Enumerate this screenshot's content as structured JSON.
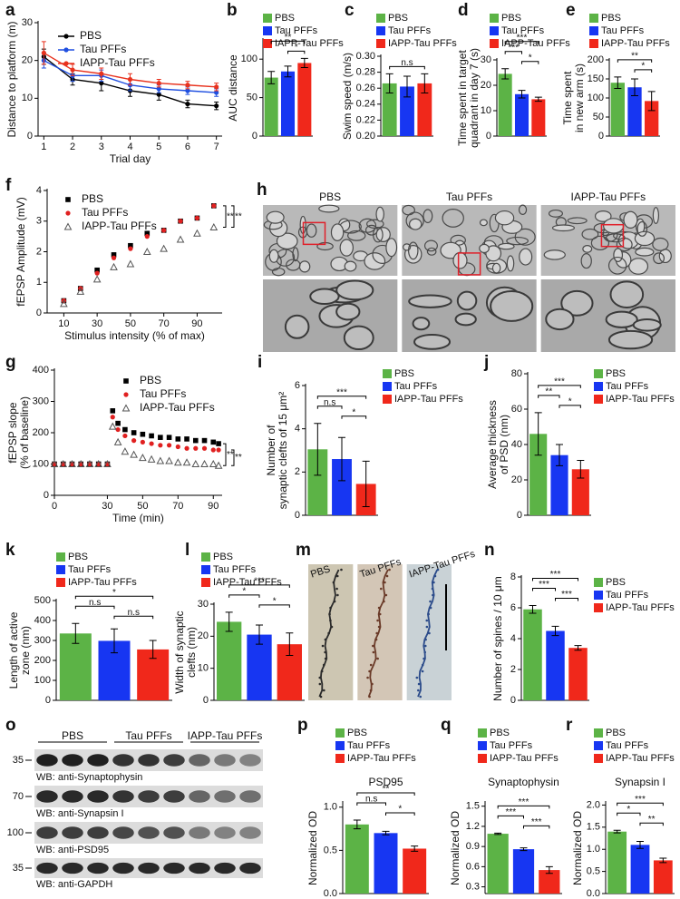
{
  "chart_data": [
    {
      "type": "line",
      "panel": "a",
      "xlabel": "Trial day",
      "ylabel": "Distance to platform (m)",
      "x": [
        1,
        2,
        3,
        4,
        5,
        6,
        7
      ],
      "xlim": [
        0.8,
        7.2
      ],
      "xticks": [
        1,
        2,
        3,
        4,
        5,
        6,
        7
      ],
      "ylim": [
        0,
        30
      ],
      "yticks": [
        0,
        10,
        20,
        30
      ],
      "legend": "top",
      "series": [
        {
          "name": "PBS",
          "color": "#000000",
          "marker": "circle",
          "values": [
            21,
            15,
            14,
            12,
            11,
            8.5,
            8
          ],
          "errors": [
            2,
            1.5,
            2,
            1.5,
            1.5,
            1,
            1
          ]
        },
        {
          "name": "Tau PFFs",
          "color": "#1f4fe0",
          "marker": "circle",
          "values": [
            20,
            16,
            16,
            13.5,
            12.5,
            12,
            11.5
          ],
          "errors": [
            2,
            1.5,
            1.5,
            1.5,
            1,
            1,
            1
          ]
        },
        {
          "name": "IAPP-Tau PFFs",
          "color": "#e8321e",
          "marker": "circle",
          "values": [
            22,
            17.5,
            16.5,
            15,
            14,
            13.5,
            13
          ],
          "errors": [
            3,
            1.5,
            1.5,
            1.5,
            1,
            1,
            1
          ]
        }
      ]
    },
    {
      "type": "bar",
      "panel": "b",
      "ylabel": "AUC distance",
      "categories": [
        "PBS",
        "Tau PFFs",
        "IAPP-Tau PFFs"
      ],
      "colors": [
        "#5cb346",
        "#1736f2",
        "#f0281b"
      ],
      "values": [
        76,
        84,
        95
      ],
      "errors": [
        8,
        7,
        6
      ],
      "ylim": [
        0,
        125
      ],
      "yticks": [
        0,
        50,
        100
      ],
      "legend": "top",
      "significance": [
        {
          "text": "**",
          "pair": [
            0,
            2
          ]
        },
        {
          "text": "*",
          "pair": [
            1,
            2
          ]
        }
      ]
    },
    {
      "type": "bar",
      "panel": "c",
      "ylabel": "Swim speed (m/s)",
      "categories": [
        "PBS",
        "Tau PFFs",
        "IAPP-Tau PFFs"
      ],
      "colors": [
        "#5cb346",
        "#1736f2",
        "#f0281b"
      ],
      "values": [
        0.266,
        0.262,
        0.266
      ],
      "errors": [
        0.012,
        0.013,
        0.012
      ],
      "ylim": [
        0.2,
        0.3
      ],
      "yticks": [
        {
          "value": 0.2,
          "label": "0.20"
        },
        0.22,
        0.24,
        0.26,
        0.28,
        {
          "value": 0.3,
          "label": "0.30"
        }
      ],
      "legend": "top",
      "significance": [
        {
          "text": "n.s",
          "pair": [
            0,
            2
          ]
        }
      ]
    },
    {
      "type": "bar",
      "panel": "d",
      "ylabel": [
        "Time spent in target",
        "quadrant in day 7 (s)"
      ],
      "categories": [
        "PBS",
        "Tau PFFs",
        "IAPP-Tau PFFs"
      ],
      "colors": [
        "#5cb346",
        "#1736f2",
        "#f0281b"
      ],
      "values": [
        24.5,
        16.5,
        14.5
      ],
      "errors": [
        2,
        1.5,
        0.8
      ],
      "ylim": [
        0,
        30
      ],
      "yticks": [
        0,
        10,
        20,
        30
      ],
      "legend": "top",
      "significance": [
        {
          "text": "***",
          "pair": [
            0,
            2
          ]
        },
        {
          "text": "***",
          "pair": [
            0,
            1
          ]
        },
        {
          "text": "*",
          "pair": [
            1,
            2
          ]
        }
      ]
    },
    {
      "type": "bar",
      "panel": "e",
      "ylabel": [
        "Time spent",
        "in new arm (s)"
      ],
      "categories": [
        "PBS",
        "Tau PFFs",
        "IAPP-Tau PFFs"
      ],
      "colors": [
        "#5cb346",
        "#1736f2",
        "#f0281b"
      ],
      "values": [
        140,
        128,
        92
      ],
      "errors": [
        15,
        22,
        25
      ],
      "ylim": [
        0,
        200
      ],
      "yticks": [
        0,
        50,
        100,
        150,
        200
      ],
      "legend": "top",
      "significance": [
        {
          "text": "**",
          "pair": [
            0,
            2
          ]
        },
        {
          "text": "*",
          "pair": [
            1,
            2
          ]
        }
      ]
    },
    {
      "type": "scatter",
      "panel": "f",
      "xlabel": "Stimulus intensity (% of max)",
      "ylabel": "fEPSP Amplitude (mV)",
      "x": [
        10,
        20,
        30,
        40,
        50,
        60,
        70,
        80,
        90,
        100
      ],
      "xlim": [
        0,
        105
      ],
      "xticks": [
        10,
        30,
        50,
        70,
        90
      ],
      "ylim": [
        0,
        4
      ],
      "yticks": [
        0,
        1,
        2,
        3,
        4
      ],
      "legend": "upper left",
      "series": [
        {
          "name": "PBS",
          "color": "#000000",
          "marker": "square",
          "values": [
            0.4,
            0.8,
            1.4,
            1.9,
            2.2,
            2.6,
            2.7,
            3.0,
            3.1,
            3.5
          ]
        },
        {
          "name": "Tau PFFs",
          "color": "#e02020",
          "marker": "circle",
          "values": [
            0.4,
            0.8,
            1.3,
            1.8,
            2.1,
            2.5,
            2.7,
            3.0,
            3.1,
            3.5
          ]
        },
        {
          "name": "IAPP-Tau PFFs",
          "color": "#555555",
          "marker": "triangle",
          "values": [
            0.3,
            0.7,
            1.1,
            1.5,
            1.6,
            2.0,
            2.1,
            2.4,
            2.6,
            2.8
          ]
        }
      ],
      "significance": [
        {
          "text": "**",
          "pair": [
            0,
            2
          ]
        },
        {
          "text": "**",
          "pair": [
            1,
            2
          ]
        }
      ]
    },
    {
      "type": "scatter",
      "panel": "g",
      "xlabel": "Time (min)",
      "ylabel": [
        "fEPSP slope",
        "(% of baseline)"
      ],
      "x": [
        0,
        5,
        10,
        15,
        20,
        25,
        30,
        33,
        36,
        40,
        45,
        50,
        55,
        60,
        65,
        70,
        75,
        80,
        85,
        90,
        93
      ],
      "xlim": [
        0,
        95
      ],
      "xticks": [
        0,
        30,
        50,
        70,
        90
      ],
      "ylim": [
        0,
        400
      ],
      "yticks": [
        0,
        100,
        200,
        300,
        400
      ],
      "legend": "upper right",
      "series": [
        {
          "name": "PBS",
          "color": "#000000",
          "marker": "square",
          "values": [
            100,
            100,
            100,
            100,
            100,
            100,
            100,
            270,
            230,
            210,
            200,
            195,
            190,
            185,
            185,
            180,
            180,
            175,
            175,
            170,
            165
          ]
        },
        {
          "name": "Tau PFFs",
          "color": "#e02020",
          "marker": "circle",
          "values": [
            100,
            100,
            100,
            100,
            100,
            100,
            100,
            250,
            210,
            190,
            175,
            170,
            165,
            160,
            160,
            155,
            150,
            150,
            150,
            145,
            145
          ]
        },
        {
          "name": "IAPP-Tau PFFs",
          "color": "#555555",
          "marker": "triangle",
          "values": [
            100,
            100,
            100,
            100,
            100,
            100,
            100,
            220,
            170,
            140,
            130,
            120,
            115,
            110,
            110,
            105,
            105,
            100,
            100,
            100,
            95
          ]
        }
      ],
      "significance": [
        {
          "text": "**",
          "pair": [
            0,
            2
          ]
        },
        {
          "text": "**",
          "pair": [
            1,
            2
          ]
        }
      ]
    },
    {
      "type": "micrograph",
      "panel": "h",
      "labels": [
        "PBS",
        "Tau PFFs",
        "IAPP-Tau PFFs"
      ]
    },
    {
      "type": "bar",
      "panel": "i",
      "ylabel": [
        "Number of",
        "synaptic clefts of 15 μm²"
      ],
      "categories": [
        "PBS",
        "Tau PFFs",
        "IAPP-Tau PFFs"
      ],
      "colors": [
        "#5cb346",
        "#1736f2",
        "#f0281b"
      ],
      "values": [
        3.05,
        2.6,
        1.45
      ],
      "errors": [
        1.2,
        1.0,
        1.05
      ],
      "ylim": [
        0,
        6
      ],
      "yticks": [
        0,
        2,
        4,
        6
      ],
      "legend": "right",
      "significance": [
        {
          "text": "***",
          "pair": [
            0,
            2
          ]
        },
        {
          "text": "n.s",
          "pair": [
            0,
            1
          ]
        },
        {
          "text": "*",
          "pair": [
            1,
            2
          ]
        }
      ]
    },
    {
      "type": "bar",
      "panel": "j",
      "ylabel": [
        "Average thickness",
        "of PSD (nm)"
      ],
      "categories": [
        "PBS",
        "Tau PFFs",
        "IAPP-Tau PFFs"
      ],
      "colors": [
        "#5cb346",
        "#1736f2",
        "#f0281b"
      ],
      "values": [
        46,
        34,
        26
      ],
      "errors": [
        12,
        6,
        5
      ],
      "ylim": [
        0,
        80
      ],
      "yticks": [
        0,
        20,
        40,
        60,
        80
      ],
      "legend": "right",
      "significance": [
        {
          "text": "***",
          "pair": [
            0,
            2
          ]
        },
        {
          "text": "**",
          "pair": [
            0,
            1
          ]
        },
        {
          "text": "*",
          "pair": [
            1,
            2
          ]
        }
      ]
    },
    {
      "type": "bar",
      "panel": "k",
      "ylabel": [
        "Length of active",
        "zone (nm)"
      ],
      "categories": [
        "PBS",
        "Tau PFFs",
        "IAPP-Tau PFFs"
      ],
      "colors": [
        "#5cb346",
        "#1736f2",
        "#f0281b"
      ],
      "values": [
        335,
        298,
        255
      ],
      "errors": [
        50,
        60,
        45
      ],
      "ylim": [
        0,
        500
      ],
      "yticks": [
        0,
        100,
        200,
        300,
        400,
        500
      ],
      "legend": "top",
      "significance": [
        {
          "text": "*",
          "pair": [
            0,
            2
          ]
        },
        {
          "text": "n.s",
          "pair": [
            0,
            1
          ]
        },
        {
          "text": "n.s",
          "pair": [
            1,
            2
          ]
        }
      ]
    },
    {
      "type": "bar",
      "panel": "l",
      "ylabel": [
        "Width of synaptic",
        "clefts (nm)"
      ],
      "categories": [
        "PBS",
        "Tau PFFs",
        "IAPP-Tau PFFs"
      ],
      "colors": [
        "#5cb346",
        "#1736f2",
        "#f0281b"
      ],
      "values": [
        24.5,
        20.5,
        17.5
      ],
      "errors": [
        3,
        3,
        3.5
      ],
      "ylim": [
        0,
        30
      ],
      "yticks": [
        0,
        10,
        20,
        30
      ],
      "legend": "top",
      "significance": [
        {
          "text": "***",
          "pair": [
            0,
            2
          ]
        },
        {
          "text": "*",
          "pair": [
            0,
            1
          ]
        },
        {
          "text": "*",
          "pair": [
            1,
            2
          ]
        }
      ]
    },
    {
      "type": "strips",
      "panel": "m",
      "labels": [
        "PBS",
        "Tau PFFs",
        "IAPP-Tau PFFs"
      ]
    },
    {
      "type": "bar",
      "panel": "n",
      "ylabel": "Number of spines / 10 μm",
      "categories": [
        "PBS",
        "Tau PFFs",
        "IAPP-Tau PFFs"
      ],
      "colors": [
        "#5cb346",
        "#1736f2",
        "#f0281b"
      ],
      "values": [
        5.9,
        4.5,
        3.4
      ],
      "errors": [
        0.25,
        0.3,
        0.15
      ],
      "ylim": [
        0,
        8
      ],
      "yticks": [
        0,
        2,
        4,
        6,
        8
      ],
      "legend": "right",
      "significance": [
        {
          "text": "***",
          "pair": [
            0,
            2
          ]
        },
        {
          "text": "***",
          "pair": [
            0,
            1
          ]
        },
        {
          "text": "***",
          "pair": [
            1,
            2
          ]
        }
      ]
    },
    {
      "type": "blot",
      "panel": "o",
      "groups": [
        "PBS",
        "Tau PFFs",
        "IAPP-Tau PFFs"
      ],
      "blots": [
        {
          "marker": 35,
          "label": "WB: anti-Synaptophysin"
        },
        {
          "marker": 70,
          "label": "WB: anti-Synapsin I"
        },
        {
          "marker": 100,
          "label": "WB: anti-PSD95"
        },
        {
          "marker": 35,
          "label": "WB: anti-GAPDH"
        }
      ]
    },
    {
      "type": "bar",
      "panel": "p",
      "subtitle": "PSD95",
      "ylabel": "Normalized OD",
      "categories": [
        "PBS",
        "Tau PFFs",
        "IAPP-Tau PFFs"
      ],
      "colors": [
        "#5cb346",
        "#1736f2",
        "#f0281b"
      ],
      "values": [
        0.8,
        0.7,
        0.52
      ],
      "errors": [
        0.05,
        0.02,
        0.03
      ],
      "ylim": [
        0,
        1.05
      ],
      "yticks": [
        {
          "value": 0,
          "label": "0.0"
        },
        0.5,
        {
          "value": 1,
          "label": "1.0"
        }
      ],
      "legend": "top",
      "significance": [
        {
          "text": "**",
          "pair": [
            0,
            2
          ]
        },
        {
          "text": "n.s",
          "pair": [
            0,
            1
          ]
        },
        {
          "text": "*",
          "pair": [
            1,
            2
          ]
        }
      ]
    },
    {
      "type": "bar",
      "panel": "q",
      "subtitle": "Synaptophysin",
      "ylabel": "Normalized OD",
      "categories": [
        "PBS",
        "Tau PFFs",
        "IAPP-Tau PFFs"
      ],
      "colors": [
        "#5cb346",
        "#1736f2",
        "#f0281b"
      ],
      "values": [
        1.09,
        0.86,
        0.55
      ],
      "errors": [
        0.01,
        0.02,
        0.05
      ],
      "ylim": [
        0.2,
        1.55
      ],
      "yticks": [
        0.3,
        0.6,
        0.9,
        1.2,
        1.5
      ],
      "legend": "top",
      "significance": [
        {
          "text": "***",
          "pair": [
            0,
            2
          ]
        },
        {
          "text": "***",
          "pair": [
            0,
            1
          ]
        },
        {
          "text": "***",
          "pair": [
            1,
            2
          ]
        }
      ]
    },
    {
      "type": "bar",
      "panel": "r",
      "subtitle": "Synapsin I",
      "ylabel": "Normalized OD",
      "categories": [
        "PBS",
        "Tau PFFs",
        "IAPP-Tau PFFs"
      ],
      "colors": [
        "#5cb346",
        "#1736f2",
        "#f0281b"
      ],
      "values": [
        1.4,
        1.1,
        0.75
      ],
      "errors": [
        0.03,
        0.08,
        0.05
      ],
      "ylim": [
        0,
        2.05
      ],
      "yticks": [
        {
          "value": 0,
          "label": "0.0"
        },
        0.5,
        {
          "value": 1,
          "label": "1.0"
        },
        1.5,
        {
          "value": 2,
          "label": "2.0"
        }
      ],
      "legend": "top",
      "significance": [
        {
          "text": "***",
          "pair": [
            0,
            2
          ]
        },
        {
          "text": "*",
          "pair": [
            0,
            1
          ]
        },
        {
          "text": "**",
          "pair": [
            1,
            2
          ]
        }
      ]
    }
  ]
}
